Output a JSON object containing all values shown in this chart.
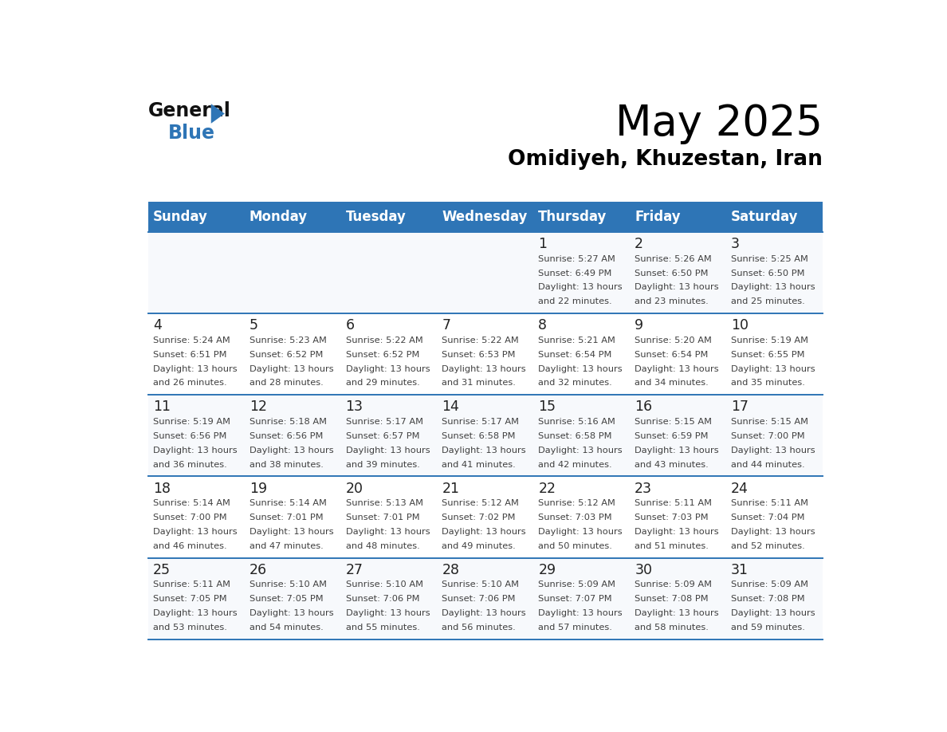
{
  "title": "May 2025",
  "subtitle": "Omidiyeh, Khuzestan, Iran",
  "days_of_week": [
    "Sunday",
    "Monday",
    "Tuesday",
    "Wednesday",
    "Thursday",
    "Friday",
    "Saturday"
  ],
  "header_bg": "#2E75B6",
  "header_text": "#FFFFFF",
  "row_bg_odd": "#FFFFFF",
  "row_bg_even": "#F2F7FF",
  "border_color": "#2E75B6",
  "text_color": "#404040",
  "day_number_color": "#222222",
  "logo_black": "#111111",
  "logo_blue": "#2E75B6",
  "calendar": [
    [
      null,
      null,
      null,
      null,
      {
        "day": 1,
        "sunrise": "5:27 AM",
        "sunset": "6:49 PM",
        "daylight": "13 hours and 22 minutes"
      },
      {
        "day": 2,
        "sunrise": "5:26 AM",
        "sunset": "6:50 PM",
        "daylight": "13 hours and 23 minutes"
      },
      {
        "day": 3,
        "sunrise": "5:25 AM",
        "sunset": "6:50 PM",
        "daylight": "13 hours and 25 minutes"
      }
    ],
    [
      {
        "day": 4,
        "sunrise": "5:24 AM",
        "sunset": "6:51 PM",
        "daylight": "13 hours and 26 minutes"
      },
      {
        "day": 5,
        "sunrise": "5:23 AM",
        "sunset": "6:52 PM",
        "daylight": "13 hours and 28 minutes"
      },
      {
        "day": 6,
        "sunrise": "5:22 AM",
        "sunset": "6:52 PM",
        "daylight": "13 hours and 29 minutes"
      },
      {
        "day": 7,
        "sunrise": "5:22 AM",
        "sunset": "6:53 PM",
        "daylight": "13 hours and 31 minutes"
      },
      {
        "day": 8,
        "sunrise": "5:21 AM",
        "sunset": "6:54 PM",
        "daylight": "13 hours and 32 minutes"
      },
      {
        "day": 9,
        "sunrise": "5:20 AM",
        "sunset": "6:54 PM",
        "daylight": "13 hours and 34 minutes"
      },
      {
        "day": 10,
        "sunrise": "5:19 AM",
        "sunset": "6:55 PM",
        "daylight": "13 hours and 35 minutes"
      }
    ],
    [
      {
        "day": 11,
        "sunrise": "5:19 AM",
        "sunset": "6:56 PM",
        "daylight": "13 hours and 36 minutes"
      },
      {
        "day": 12,
        "sunrise": "5:18 AM",
        "sunset": "6:56 PM",
        "daylight": "13 hours and 38 minutes"
      },
      {
        "day": 13,
        "sunrise": "5:17 AM",
        "sunset": "6:57 PM",
        "daylight": "13 hours and 39 minutes"
      },
      {
        "day": 14,
        "sunrise": "5:17 AM",
        "sunset": "6:58 PM",
        "daylight": "13 hours and 41 minutes"
      },
      {
        "day": 15,
        "sunrise": "5:16 AM",
        "sunset": "6:58 PM",
        "daylight": "13 hours and 42 minutes"
      },
      {
        "day": 16,
        "sunrise": "5:15 AM",
        "sunset": "6:59 PM",
        "daylight": "13 hours and 43 minutes"
      },
      {
        "day": 17,
        "sunrise": "5:15 AM",
        "sunset": "7:00 PM",
        "daylight": "13 hours and 44 minutes"
      }
    ],
    [
      {
        "day": 18,
        "sunrise": "5:14 AM",
        "sunset": "7:00 PM",
        "daylight": "13 hours and 46 minutes"
      },
      {
        "day": 19,
        "sunrise": "5:14 AM",
        "sunset": "7:01 PM",
        "daylight": "13 hours and 47 minutes"
      },
      {
        "day": 20,
        "sunrise": "5:13 AM",
        "sunset": "7:01 PM",
        "daylight": "13 hours and 48 minutes"
      },
      {
        "day": 21,
        "sunrise": "5:12 AM",
        "sunset": "7:02 PM",
        "daylight": "13 hours and 49 minutes"
      },
      {
        "day": 22,
        "sunrise": "5:12 AM",
        "sunset": "7:03 PM",
        "daylight": "13 hours and 50 minutes"
      },
      {
        "day": 23,
        "sunrise": "5:11 AM",
        "sunset": "7:03 PM",
        "daylight": "13 hours and 51 minutes"
      },
      {
        "day": 24,
        "sunrise": "5:11 AM",
        "sunset": "7:04 PM",
        "daylight": "13 hours and 52 minutes"
      }
    ],
    [
      {
        "day": 25,
        "sunrise": "5:11 AM",
        "sunset": "7:05 PM",
        "daylight": "13 hours and 53 minutes"
      },
      {
        "day": 26,
        "sunrise": "5:10 AM",
        "sunset": "7:05 PM",
        "daylight": "13 hours and 54 minutes"
      },
      {
        "day": 27,
        "sunrise": "5:10 AM",
        "sunset": "7:06 PM",
        "daylight": "13 hours and 55 minutes"
      },
      {
        "day": 28,
        "sunrise": "5:10 AM",
        "sunset": "7:06 PM",
        "daylight": "13 hours and 56 minutes"
      },
      {
        "day": 29,
        "sunrise": "5:09 AM",
        "sunset": "7:07 PM",
        "daylight": "13 hours and 57 minutes"
      },
      {
        "day": 30,
        "sunrise": "5:09 AM",
        "sunset": "7:08 PM",
        "daylight": "13 hours and 58 minutes"
      },
      {
        "day": 31,
        "sunrise": "5:09 AM",
        "sunset": "7:08 PM",
        "daylight": "13 hours and 59 minutes"
      }
    ]
  ]
}
